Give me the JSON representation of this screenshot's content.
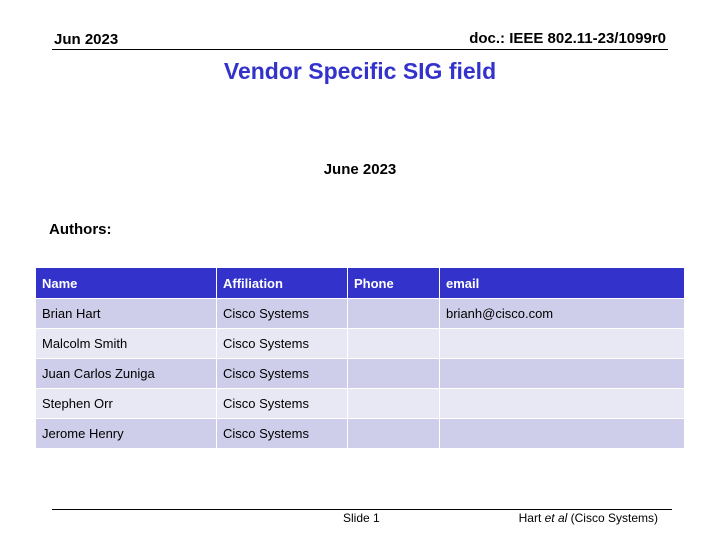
{
  "header": {
    "date": "Jun 2023",
    "doc_id": "doc.: IEEE 802.11-23/1099r0"
  },
  "title": "Vendor Specific SIG field",
  "date_line": "June 2023",
  "authors_label": "Authors:",
  "table": {
    "headers": [
      "Name",
      "Affiliation",
      "Phone",
      "email"
    ],
    "rows": [
      [
        "Brian Hart",
        "Cisco Systems",
        "",
        "brianh@cisco.com"
      ],
      [
        "Malcolm Smith",
        "Cisco Systems",
        "",
        ""
      ],
      [
        "Juan Carlos Zuniga",
        "Cisco Systems",
        "",
        ""
      ],
      [
        "Stephen Orr",
        "Cisco Systems",
        "",
        ""
      ],
      [
        "Jerome Henry",
        "Cisco Systems",
        "",
        ""
      ]
    ]
  },
  "footer": {
    "slide": "Slide 1",
    "author_name": "Hart ",
    "author_etal": "et al",
    "author_org": " (Cisco Systems)"
  },
  "colors": {
    "accent": "#3333cc",
    "row_odd": "#ceceea",
    "row_even": "#e8e8f4"
  }
}
